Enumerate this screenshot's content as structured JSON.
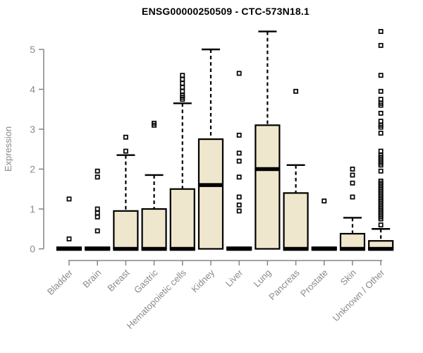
{
  "chart_data": {
    "type": "boxplot",
    "title": "ENSG00000250509 - CTC-573N18.1",
    "ylabel": "Expression",
    "ylim": [
      0,
      5.6
    ],
    "yticks": [
      0,
      1,
      2,
      3,
      4,
      5
    ],
    "grid": false,
    "legend": "none",
    "box_fill": "#efe7cd",
    "box_stroke": "#000000",
    "axis_color": "#858585",
    "label_color": "#8a8a8a",
    "marker": "open-square",
    "categories": [
      "Bladder",
      "Brain",
      "Breast",
      "Gastric",
      "Hematopoietic cells",
      "Kidney",
      "Liver",
      "Lung",
      "Pancreas",
      "Prostate",
      "Skin",
      "Unknown / Other"
    ],
    "series": [
      {
        "category": "Bladder",
        "q1": 0,
        "median": 0,
        "q3": 0.04,
        "whisker_low": 0,
        "whisker_high": null,
        "outliers": [
          0.25,
          1.25
        ]
      },
      {
        "category": "Brain",
        "q1": 0,
        "median": 0,
        "q3": 0.04,
        "whisker_low": 0,
        "whisker_high": null,
        "outliers": [
          0.45,
          0.8,
          0.9,
          1.0,
          1.8,
          1.95
        ]
      },
      {
        "category": "Breast",
        "q1": 0,
        "median": 0,
        "q3": 0.95,
        "whisker_low": 0,
        "whisker_high": 2.35,
        "outliers": [
          2.45,
          2.8
        ]
      },
      {
        "category": "Gastric",
        "q1": 0,
        "median": 0,
        "q3": 1.0,
        "whisker_low": 0,
        "whisker_high": 1.85,
        "outliers": [
          3.1,
          3.15
        ]
      },
      {
        "category": "Hematopoietic cells",
        "q1": 0,
        "median": 0,
        "q3": 1.5,
        "whisker_low": 0,
        "whisker_high": 3.65,
        "outliers": [
          3.75,
          3.8,
          3.85,
          3.95,
          4.05,
          4.15,
          4.25,
          4.35
        ]
      },
      {
        "category": "Kidney",
        "q1": 0,
        "median": 1.6,
        "q3": 2.75,
        "whisker_low": 0,
        "whisker_high": 5.0,
        "outliers": []
      },
      {
        "category": "Liver",
        "q1": 0,
        "median": 0,
        "q3": 0.04,
        "whisker_low": 0,
        "whisker_high": null,
        "outliers": [
          0.95,
          1.1,
          1.3,
          1.8,
          2.2,
          2.4,
          2.85,
          4.4
        ]
      },
      {
        "category": "Lung",
        "q1": 0,
        "median": 2.0,
        "q3": 3.1,
        "whisker_low": 0,
        "whisker_high": 5.45,
        "outliers": []
      },
      {
        "category": "Pancreas",
        "q1": 0,
        "median": 0,
        "q3": 1.4,
        "whisker_low": 0,
        "whisker_high": 2.1,
        "outliers": [
          3.95
        ]
      },
      {
        "category": "Prostate",
        "q1": 0,
        "median": 0,
        "q3": 0.04,
        "whisker_low": 0,
        "whisker_high": null,
        "outliers": [
          1.2
        ]
      },
      {
        "category": "Skin",
        "q1": 0,
        "median": 0,
        "q3": 0.38,
        "whisker_low": 0,
        "whisker_high": 0.78,
        "outliers": [
          1.3,
          1.65,
          1.85,
          2.0
        ]
      },
      {
        "category": "Unknown / Other",
        "q1": 0,
        "median": 0,
        "q3": 0.2,
        "whisker_low": 0,
        "whisker_high": 0.5,
        "outliers": [
          0.6,
          0.75,
          0.8,
          0.85,
          0.9,
          0.95,
          1.0,
          1.05,
          1.1,
          1.15,
          1.2,
          1.25,
          1.3,
          1.35,
          1.4,
          1.45,
          1.5,
          1.55,
          1.6,
          1.65,
          1.7,
          1.95,
          2.1,
          2.15,
          2.2,
          2.25,
          2.3,
          2.35,
          2.45,
          2.9,
          3.05,
          3.1,
          3.2,
          3.4,
          3.6,
          3.65,
          3.75,
          3.95,
          4.35,
          5.1,
          5.45
        ]
      }
    ]
  }
}
